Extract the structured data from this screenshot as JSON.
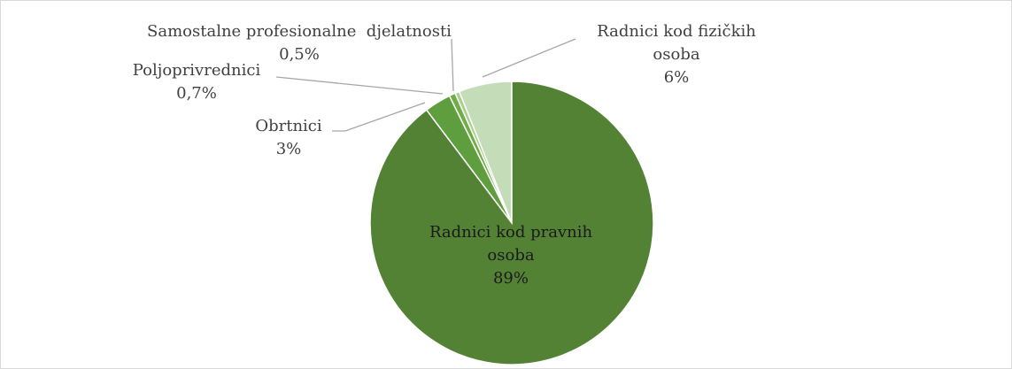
{
  "chart_data": {
    "type": "pie",
    "categories": [
      "Radnici kod pravnih osoba",
      "Obrtnici",
      "Poljoprivrednici",
      "Samostalne profesionalne  djelatnosti",
      "Radnici kod fizičkih osoba"
    ],
    "values": [
      89,
      3,
      0.7,
      0.5,
      6
    ],
    "value_labels": [
      "89%",
      "3%",
      "0,7%",
      "0,5%",
      "6%"
    ],
    "colors": [
      "#548235",
      "#5f9e3e",
      "#70ad47",
      "#a9d18e",
      "#c5dcb8"
    ]
  }
}
